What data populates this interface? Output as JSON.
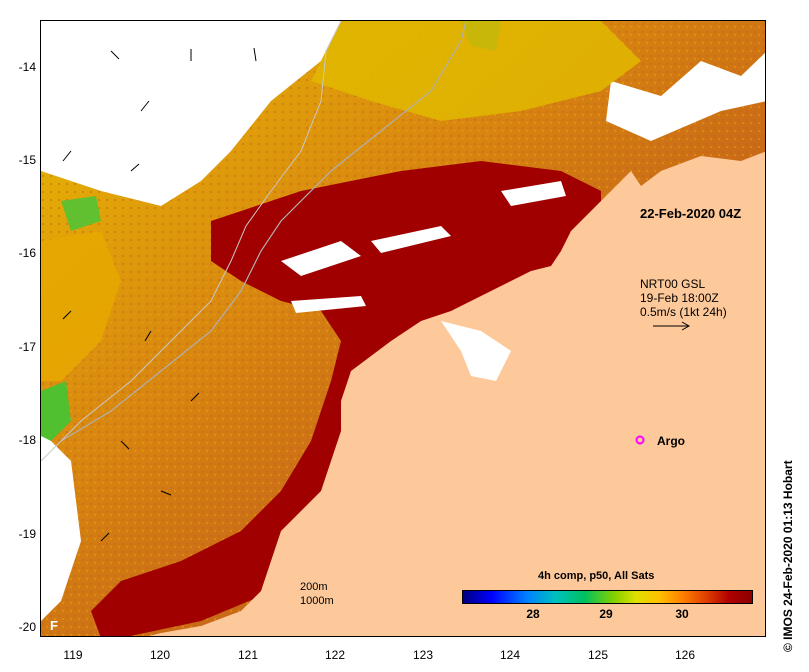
{
  "map": {
    "date_label": "22-Feb-2020 04Z",
    "current_info": [
      "NRT00 GSL",
      "19-Feb 18:00Z",
      "0.5m/s (1kt 24h)"
    ],
    "argo_label": "Argo",
    "contour_legend": [
      "200m",
      "1000m"
    ],
    "corner_marker": "F",
    "y_ticks": [
      "-14",
      "-15",
      "-16",
      "-17",
      "-18",
      "-19",
      "-20"
    ],
    "x_ticks": [
      "119",
      "120",
      "121",
      "122",
      "123",
      "124",
      "125",
      "126"
    ],
    "colors": {
      "land": "#fec99a",
      "sst_hot": "#a00000",
      "sst_warm": "#d2691e",
      "sst_mid": "#f0b000",
      "sst_cool": "#40c040",
      "no_data": "#ffffff",
      "argo": "#ff00ff"
    }
  },
  "colorbar": {
    "title": "4h comp, p50, All Sats",
    "ticks": [
      "28",
      "29",
      "30"
    ]
  },
  "credit": "© IMOS 24-Feb-2020 01:13 Hobart"
}
